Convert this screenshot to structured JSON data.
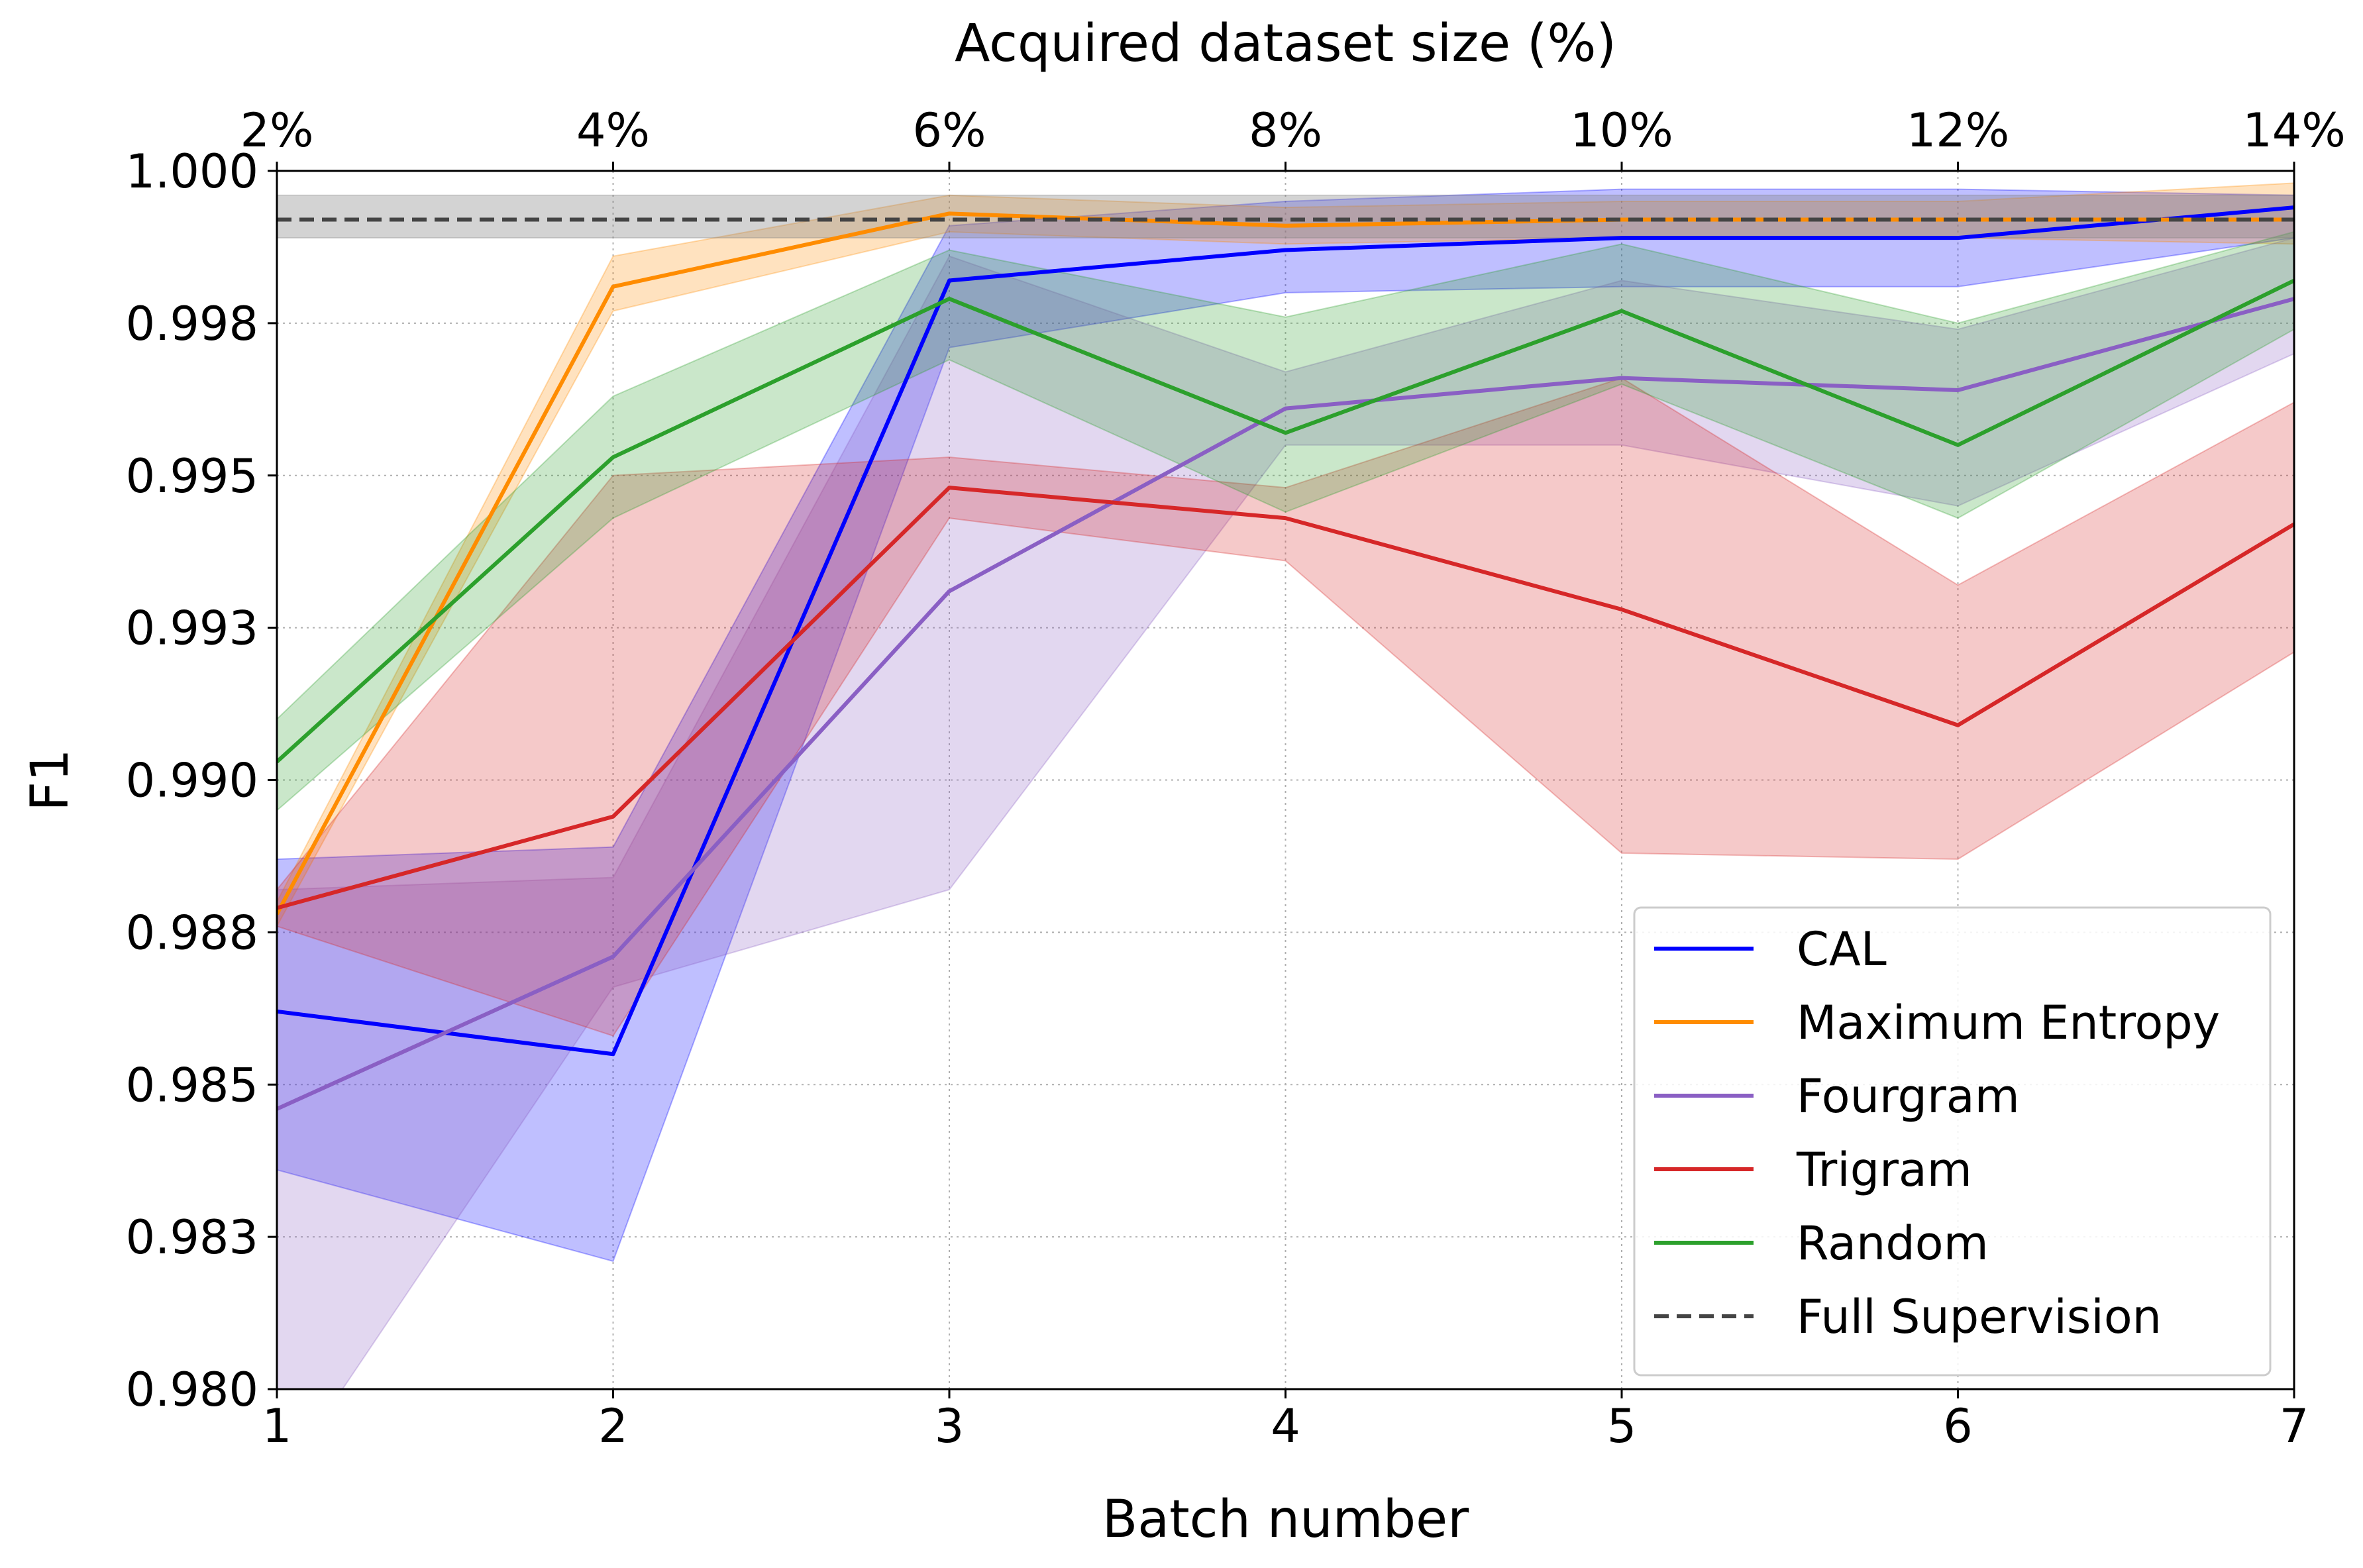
{
  "chart_data": {
    "type": "line",
    "title": "",
    "xlabel": "Batch number",
    "ylabel": "F1",
    "top_xlabel": "Acquired dataset size (%)",
    "x": [
      1,
      2,
      3,
      4,
      5,
      6,
      7
    ],
    "xlim": [
      1,
      7
    ],
    "ylim": [
      0.98,
      1.0
    ],
    "x_tick_labels": [
      "1",
      "2",
      "3",
      "4",
      "5",
      "6",
      "7"
    ],
    "top_tick_labels": [
      "2%",
      "4%",
      "6%",
      "8%",
      "10%",
      "12%",
      "14%"
    ],
    "y_ticks": [
      0.98,
      0.9825,
      0.985,
      0.9875,
      0.99,
      0.9925,
      0.995,
      0.9975,
      1.0
    ],
    "y_tick_labels": [
      "0.980",
      "0.983",
      "0.985",
      "0.988",
      "0.990",
      "0.993",
      "0.995",
      "0.998",
      "1.000"
    ],
    "grid": true,
    "legend_position": "lower-right",
    "series": [
      {
        "name": "CAL",
        "color": "#0000ff",
        "values": [
          0.9862,
          0.9855,
          0.9982,
          0.9987,
          0.9989,
          0.9989,
          0.9994
        ],
        "lower": [
          0.9836,
          0.9821,
          0.9971,
          0.998,
          0.9981,
          0.9981,
          0.9989
        ],
        "upper": [
          0.9887,
          0.9889,
          0.9991,
          0.9995,
          0.9997,
          0.9997,
          0.9996
        ]
      },
      {
        "name": "Maximum Entropy",
        "color": "#ff8c00",
        "values": [
          0.9878,
          0.9981,
          0.9993,
          0.9991,
          0.9992,
          0.9992,
          0.9992
        ],
        "lower": [
          0.9876,
          0.9977,
          0.999,
          0.9988,
          0.9989,
          0.9989,
          0.9988
        ],
        "upper": [
          0.988,
          0.9986,
          0.9996,
          0.9994,
          0.9995,
          0.9995,
          0.9998
        ]
      },
      {
        "name": "Fourgram",
        "color": "#8a5fc4",
        "values": [
          0.9846,
          0.9871,
          0.9931,
          0.9961,
          0.9966,
          0.9964,
          0.9979
        ],
        "lower": [
          0.9784,
          0.9866,
          0.9882,
          0.9955,
          0.9955,
          0.9945,
          0.997
        ],
        "upper": [
          0.9882,
          0.9884,
          0.9986,
          0.9967,
          0.9982,
          0.9974,
          0.9989
        ]
      },
      {
        "name": "Trigram",
        "color": "#d62728",
        "values": [
          0.9879,
          0.9894,
          0.9948,
          0.9943,
          0.9928,
          0.9909,
          0.9942
        ],
        "lower": [
          0.9876,
          0.9858,
          0.9943,
          0.9936,
          0.9888,
          0.9887,
          0.9921
        ],
        "upper": [
          0.9882,
          0.995,
          0.9953,
          0.9948,
          0.9966,
          0.9932,
          0.9962
        ]
      },
      {
        "name": "Random",
        "color": "#2ca02c",
        "values": [
          0.9903,
          0.9953,
          0.9979,
          0.9957,
          0.9977,
          0.9955,
          0.9982
        ],
        "lower": [
          0.9895,
          0.9943,
          0.9969,
          0.9944,
          0.9965,
          0.9943,
          0.9974
        ],
        "upper": [
          0.991,
          0.9963,
          0.9987,
          0.9976,
          0.9988,
          0.9975,
          0.999
        ]
      },
      {
        "name": "Full Supervision",
        "color": "#444444",
        "dashed": true,
        "values": [
          0.9992,
          0.9992,
          0.9992,
          0.9992,
          0.9992,
          0.9992,
          0.9992
        ],
        "lower": [
          0.9989,
          0.9989,
          0.9989,
          0.9989,
          0.9989,
          0.9989,
          0.9989
        ],
        "upper": [
          0.9996,
          0.9996,
          0.9996,
          0.9996,
          0.9996,
          0.9996,
          0.9996
        ]
      }
    ]
  }
}
